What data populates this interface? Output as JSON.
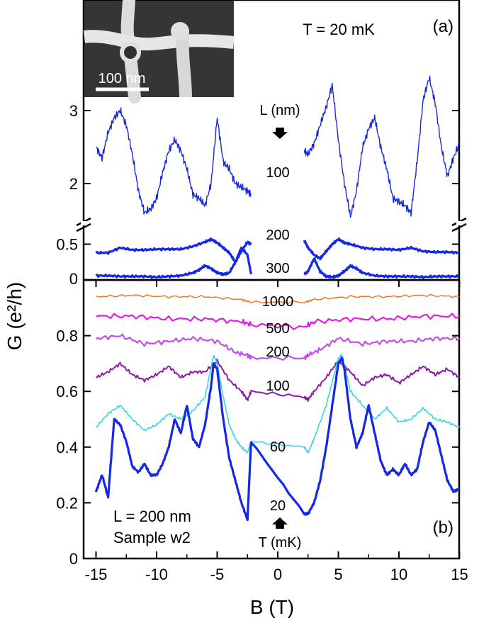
{
  "chart_data": [
    {
      "panel": "(a)",
      "type": "line",
      "annotation": "T = 20 mK",
      "inset": {
        "scale_bar_label": "100 nm"
      },
      "legend_title": "L (nm)",
      "y_ticks_upper": [
        "2",
        "3"
      ],
      "y_ticks_lower": [
        "0",
        "0.5"
      ],
      "x_range": [
        -15,
        15
      ],
      "series": [
        {
          "label": "100",
          "color": "#1428e6",
          "x": [
            -15,
            -14.5,
            -14,
            -13.5,
            -13,
            -12.5,
            -12,
            -11.5,
            -11,
            -10.5,
            -10,
            -9.5,
            -9,
            -8.5,
            -8,
            -7.5,
            -7,
            -6.5,
            -6,
            -5.5,
            -5,
            -4.5,
            -4,
            -3.5,
            -3,
            -2.5,
            -2.2
          ],
          "y": [
            2.5,
            2.35,
            2.7,
            2.9,
            3.0,
            2.8,
            2.4,
            1.9,
            1.6,
            1.65,
            1.8,
            2.15,
            2.45,
            2.6,
            2.45,
            2.2,
            1.85,
            1.8,
            1.7,
            2.0,
            2.9,
            2.3,
            2.2,
            2.0,
            1.95,
            1.9,
            1.85
          ]
        },
        {
          "label": "100",
          "color": "#1428e6",
          "x": [
            2.2,
            2.5,
            3,
            3.5,
            4,
            4.5,
            5,
            5.5,
            6,
            6.5,
            7,
            7.5,
            8,
            8.5,
            9,
            9.5,
            10,
            10.5,
            11,
            11.5,
            12,
            12.5,
            13,
            13.5,
            14,
            14.5,
            15
          ],
          "y": [
            2.45,
            2.4,
            2.55,
            2.8,
            3.05,
            3.35,
            2.6,
            2.0,
            1.55,
            1.9,
            2.5,
            2.75,
            2.9,
            2.5,
            2.2,
            1.8,
            1.75,
            1.7,
            1.6,
            2.3,
            3.15,
            3.45,
            3.1,
            2.5,
            2.1,
            2.35,
            2.55
          ]
        },
        {
          "label": "200",
          "color": "#1428e6",
          "x": [
            -15,
            -14,
            -13,
            -12,
            -11,
            -10,
            -9,
            -8,
            -7,
            -6,
            -5.5,
            -5,
            -4.5,
            -4,
            -3.5,
            -3,
            -2.5,
            -2.2
          ],
          "y": [
            0.38,
            0.38,
            0.45,
            0.42,
            0.42,
            0.43,
            0.43,
            0.43,
            0.47,
            0.53,
            0.57,
            0.52,
            0.45,
            0.38,
            0.25,
            0.4,
            0.53,
            0.5
          ]
        },
        {
          "label": "200",
          "color": "#1428e6",
          "x": [
            2.2,
            2.5,
            3,
            3.5,
            4,
            4.5,
            5,
            5.5,
            6,
            7,
            8,
            9,
            10,
            11,
            12,
            13,
            14,
            15
          ],
          "y": [
            0.55,
            0.45,
            0.35,
            0.3,
            0.4,
            0.5,
            0.57,
            0.52,
            0.5,
            0.45,
            0.43,
            0.43,
            0.42,
            0.45,
            0.4,
            0.39,
            0.39,
            0.38
          ]
        },
        {
          "label": "300",
          "color": "#1428e6",
          "x": [
            -15,
            -14,
            -13,
            -12,
            -11,
            -10,
            -9,
            -8,
            -7,
            -6.5,
            -6,
            -5.5,
            -5,
            -4.5,
            -4,
            -3.5,
            -3,
            -2.5,
            -2.2
          ],
          "y": [
            0.06,
            0.06,
            0.05,
            0.05,
            0.05,
            0.04,
            0.05,
            0.06,
            0.1,
            0.14,
            0.2,
            0.16,
            0.1,
            0.08,
            0.1,
            0.25,
            0.45,
            0.35,
            0.08
          ]
        },
        {
          "label": "300",
          "color": "#1428e6",
          "x": [
            2.2,
            2.5,
            3,
            3.5,
            4,
            4.5,
            5,
            5.5,
            6,
            6.5,
            7,
            8,
            9,
            10,
            11,
            12,
            13,
            14,
            15
          ],
          "y": [
            0.08,
            0.12,
            0.3,
            0.12,
            0.05,
            0.04,
            0.06,
            0.12,
            0.2,
            0.16,
            0.1,
            0.06,
            0.05,
            0.05,
            0.05,
            0.04,
            0.05,
            0.05,
            0.05
          ]
        }
      ]
    },
    {
      "panel": "(b)",
      "type": "line",
      "annotation": [
        "L = 200 nm",
        "Sample w2"
      ],
      "legend_title": "T (mK)",
      "xlabel": "B (T)",
      "ylabel": "G (e²/h)",
      "x_range": [
        -16,
        16
      ],
      "y_range": [
        0,
        1.0
      ],
      "x_ticks": [
        "-15",
        "-10",
        "-5",
        "0",
        "5",
        "10",
        "15"
      ],
      "y_ticks": [
        "0",
        "0.2",
        "0.4",
        "0.6",
        "0.8"
      ],
      "series": [
        {
          "label": "1000",
          "color": "#e8731e",
          "x": [
            -15,
            -12,
            -9,
            -6,
            -3,
            -2.2,
            2.2,
            3,
            6,
            9,
            12,
            15
          ],
          "y": [
            0.94,
            0.945,
            0.94,
            0.94,
            0.93,
            0.92,
            0.92,
            0.93,
            0.94,
            0.94,
            0.945,
            0.94
          ]
        },
        {
          "label": "500",
          "color": "#e020e0",
          "x": [
            -15,
            -12,
            -9,
            -6,
            -3,
            -2.2,
            2.2,
            3,
            6,
            9,
            12,
            15
          ],
          "y": [
            0.87,
            0.87,
            0.86,
            0.86,
            0.85,
            0.84,
            0.83,
            0.85,
            0.86,
            0.86,
            0.87,
            0.87
          ]
        },
        {
          "label": "200",
          "color": "#c050e8",
          "x": [
            -15,
            -13,
            -11,
            -9,
            -7,
            -5,
            -3.5,
            -2.5,
            -2.2,
            2.2,
            2.5,
            3.5,
            5,
            7,
            9,
            11,
            13,
            15
          ],
          "y": [
            0.79,
            0.8,
            0.77,
            0.78,
            0.79,
            0.78,
            0.74,
            0.73,
            0.72,
            0.72,
            0.73,
            0.75,
            0.79,
            0.77,
            0.78,
            0.78,
            0.79,
            0.79
          ]
        },
        {
          "label": "100",
          "color": "#8c1ca8",
          "x": [
            -15,
            -14,
            -13,
            -12,
            -11,
            -10,
            -9,
            -8,
            -7,
            -6,
            -5,
            -4,
            -3,
            -2.5,
            -2.2,
            2.2,
            2.5,
            3,
            4,
            5,
            6,
            7,
            8,
            9,
            10,
            11,
            12,
            13,
            14,
            15
          ],
          "y": [
            0.65,
            0.67,
            0.7,
            0.66,
            0.64,
            0.66,
            0.69,
            0.65,
            0.67,
            0.67,
            0.71,
            0.64,
            0.6,
            0.57,
            0.6,
            0.58,
            0.57,
            0.6,
            0.65,
            0.71,
            0.67,
            0.62,
            0.65,
            0.66,
            0.63,
            0.66,
            0.69,
            0.66,
            0.68,
            0.65
          ]
        },
        {
          "label": "60",
          "color": "#3ad4e6",
          "x": [
            -15,
            -14,
            -13,
            -12,
            -11,
            -10,
            -9,
            -8,
            -7,
            -6,
            -5.3,
            -5,
            -4.5,
            -4,
            -3.5,
            -3,
            -2.5,
            -2.2,
            2.2,
            2.5,
            3,
            4,
            5,
            5.3,
            6,
            7,
            8,
            9,
            10,
            11,
            12,
            13,
            14,
            15
          ],
          "y": [
            0.47,
            0.52,
            0.55,
            0.5,
            0.46,
            0.48,
            0.52,
            0.5,
            0.53,
            0.58,
            0.73,
            0.7,
            0.58,
            0.48,
            0.43,
            0.4,
            0.38,
            0.42,
            0.4,
            0.38,
            0.43,
            0.55,
            0.72,
            0.73,
            0.6,
            0.55,
            0.5,
            0.54,
            0.49,
            0.5,
            0.54,
            0.5,
            0.49,
            0.47
          ]
        },
        {
          "label": "20",
          "color": "#1428e6",
          "x": [
            -15,
            -14.5,
            -14,
            -13.5,
            -13,
            -12.5,
            -12,
            -11.5,
            -11,
            -10.5,
            -10,
            -9.5,
            -9,
            -8.5,
            -8,
            -7.5,
            -7,
            -6.5,
            -6,
            -5.5,
            -5.3,
            -5,
            -4.5,
            -4,
            -3.5,
            -3,
            -2.5,
            -2.2,
            2.2,
            2.5,
            3,
            3.5,
            4,
            4.5,
            5,
            5.3,
            5.5,
            6,
            6.5,
            7,
            7.5,
            8,
            8.5,
            9,
            9.5,
            10,
            10.5,
            11,
            11.5,
            12,
            12.5,
            13,
            13.5,
            14,
            14.5,
            15
          ],
          "y": [
            0.24,
            0.3,
            0.22,
            0.5,
            0.48,
            0.42,
            0.33,
            0.31,
            0.34,
            0.3,
            0.3,
            0.34,
            0.4,
            0.5,
            0.45,
            0.55,
            0.43,
            0.4,
            0.48,
            0.62,
            0.7,
            0.68,
            0.5,
            0.36,
            0.28,
            0.2,
            0.14,
            0.42,
            0.16,
            0.16,
            0.2,
            0.28,
            0.4,
            0.55,
            0.7,
            0.72,
            0.68,
            0.5,
            0.4,
            0.45,
            0.55,
            0.45,
            0.35,
            0.3,
            0.32,
            0.3,
            0.34,
            0.3,
            0.32,
            0.42,
            0.49,
            0.46,
            0.37,
            0.28,
            0.24,
            0.25
          ]
        }
      ]
    }
  ]
}
